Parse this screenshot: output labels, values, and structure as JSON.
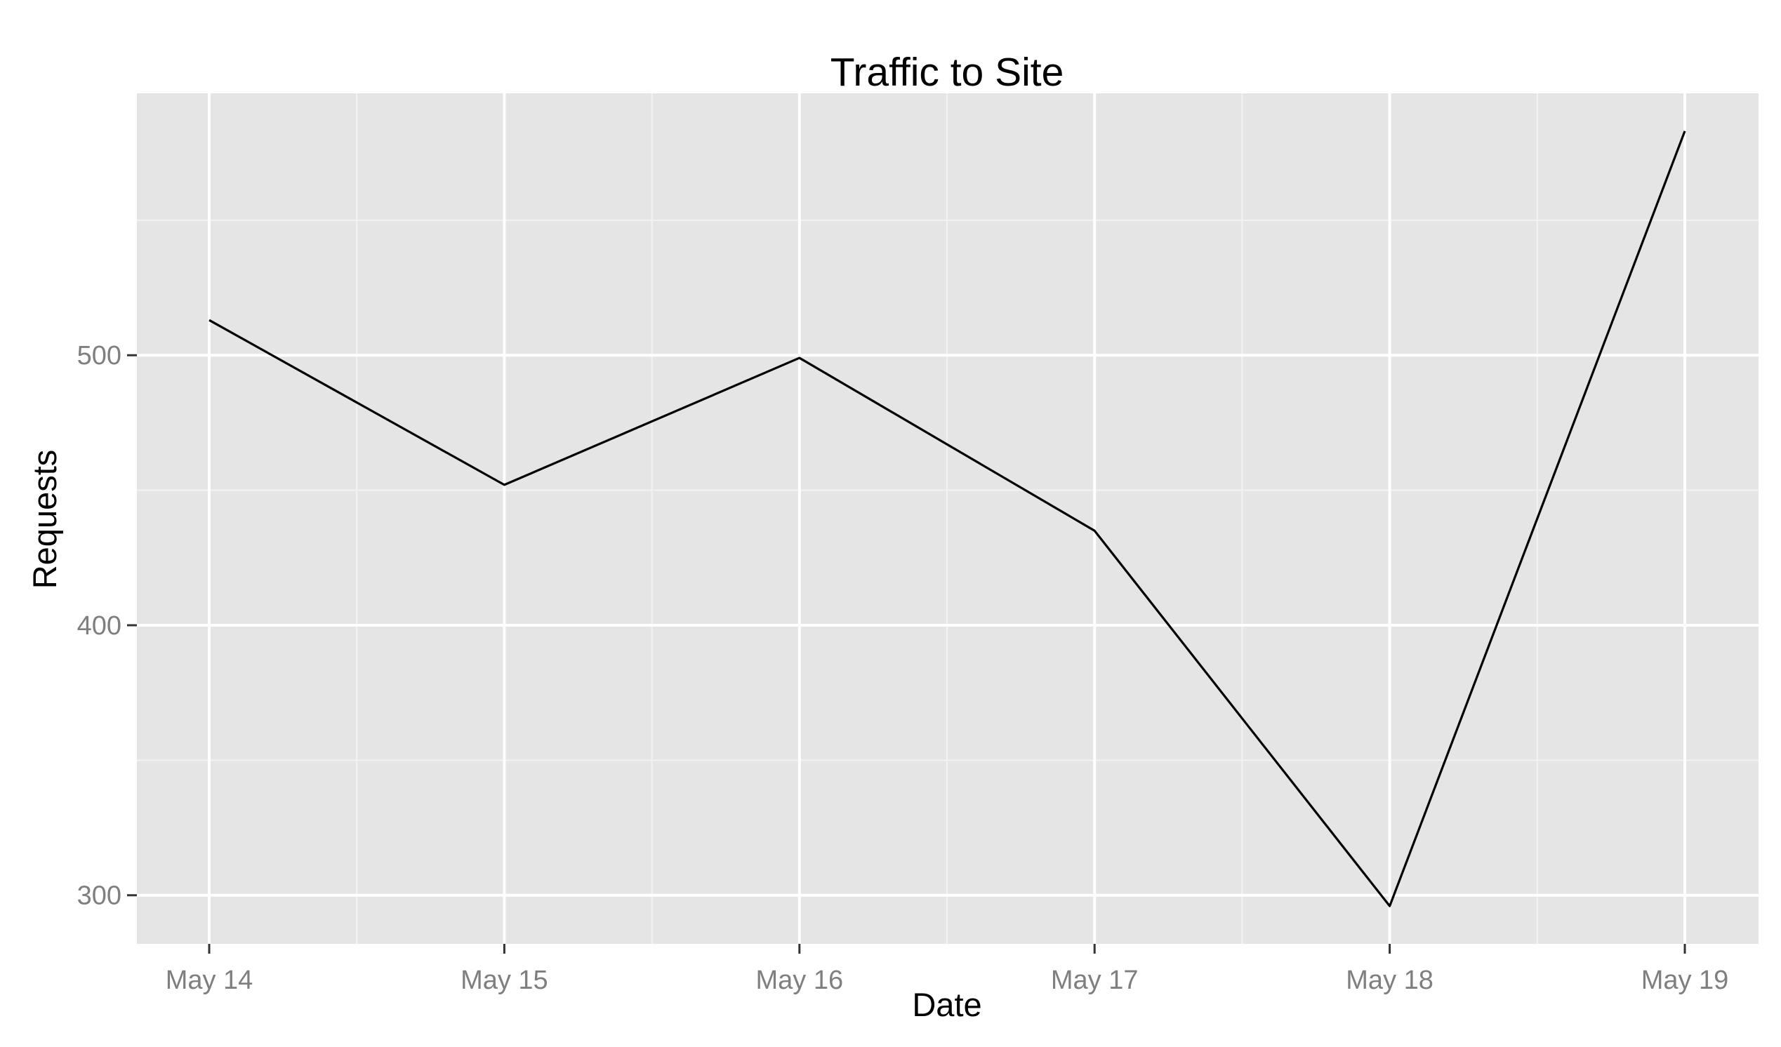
{
  "chart_data": {
    "type": "line",
    "title": "Traffic to Site",
    "xlabel": "Date",
    "ylabel": "Requests",
    "x": [
      "May 14",
      "May 15",
      "May 16",
      "May 17",
      "May 18",
      "May 19"
    ],
    "series": [
      {
        "values": [
          513,
          452,
          499,
          435,
          296,
          583
        ]
      }
    ],
    "ylim": [
      282,
      597
    ],
    "yticks": [
      300,
      400,
      500
    ],
    "grid": true,
    "legend": "none",
    "colors": {
      "panel": "#e5e5e5",
      "grid_major": "#ffffff",
      "grid_minor": "#f2f2f2",
      "line": "#000000",
      "tick_label": "#7f7f7f",
      "axis_title": "#000000"
    }
  }
}
